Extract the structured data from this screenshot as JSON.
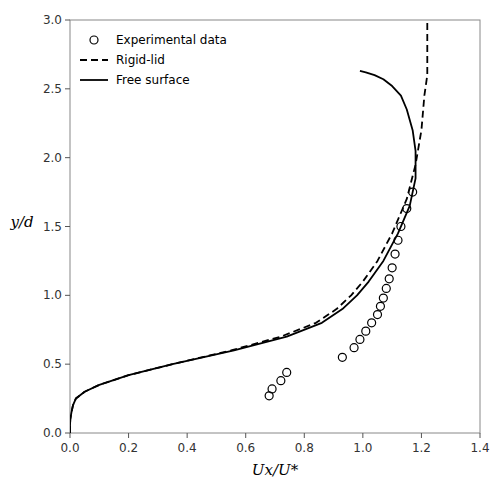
{
  "chart_data": {
    "type": "line",
    "xlabel": "Ux/U*",
    "ylabel": "y/d",
    "xlim": [
      0,
      1.4
    ],
    "ylim": [
      0,
      3.0
    ],
    "xticks": [
      {
        "value": 0,
        "label": "0.0"
      },
      0.2,
      0.4,
      0.6,
      0.8,
      {
        "value": 1.0,
        "label": "1.0"
      },
      1.2,
      1.4
    ],
    "yticks": [
      {
        "value": 0,
        "label": "0.0"
      },
      0.5,
      {
        "value": 1.0,
        "label": "1.0"
      },
      1.5,
      {
        "value": 2.0,
        "label": "2.0"
      },
      2.5,
      {
        "value": 3.0,
        "label": "3.0"
      }
    ],
    "grid": false,
    "legend": "upper left",
    "series": [
      {
        "name": "Experimental data",
        "type": "scatter",
        "color": "#000000",
        "marker": "circle",
        "x": [
          0.68,
          0.69,
          0.72,
          0.74,
          0.93,
          0.97,
          0.99,
          1.01,
          1.03,
          1.05,
          1.06,
          1.07,
          1.08,
          1.09,
          1.1,
          1.11,
          1.12,
          1.13,
          1.15,
          1.17
        ],
        "values": [
          0.27,
          0.32,
          0.38,
          0.44,
          0.55,
          0.62,
          0.68,
          0.74,
          0.8,
          0.86,
          0.92,
          0.98,
          1.05,
          1.12,
          1.2,
          1.3,
          1.4,
          1.5,
          1.63,
          1.75
        ]
      },
      {
        "name": "Rigid-lid",
        "type": "line",
        "color": "#000000",
        "line_style": "dashed",
        "x": [
          0.0,
          0.0,
          0.001,
          0.005,
          0.01,
          0.02,
          0.05,
          0.1,
          0.2,
          0.35,
          0.55,
          0.72,
          0.84,
          0.91,
          0.96,
          1.0,
          1.05,
          1.1,
          1.15,
          1.18,
          1.2,
          1.21,
          1.22,
          1.22,
          1.22,
          1.22
        ],
        "values": [
          0.0,
          0.05,
          0.1,
          0.15,
          0.2,
          0.25,
          0.3,
          0.35,
          0.42,
          0.5,
          0.6,
          0.7,
          0.8,
          0.9,
          1.0,
          1.1,
          1.25,
          1.45,
          1.7,
          1.95,
          2.2,
          2.45,
          2.6,
          2.75,
          2.9,
          3.0
        ]
      },
      {
        "name": "Free surface",
        "type": "line",
        "color": "#000000",
        "line_style": "solid",
        "x": [
          0.0,
          0.0,
          0.001,
          0.005,
          0.01,
          0.02,
          0.05,
          0.1,
          0.2,
          0.35,
          0.56,
          0.74,
          0.86,
          0.93,
          0.98,
          1.02,
          1.07,
          1.12,
          1.16,
          1.18,
          1.18,
          1.17,
          1.15,
          1.13,
          1.1,
          1.07,
          1.04,
          1.01,
          0.99
        ],
        "values": [
          0.0,
          0.05,
          0.1,
          0.15,
          0.2,
          0.25,
          0.3,
          0.35,
          0.42,
          0.5,
          0.6,
          0.7,
          0.8,
          0.9,
          1.0,
          1.1,
          1.25,
          1.45,
          1.65,
          1.85,
          2.05,
          2.2,
          2.35,
          2.45,
          2.52,
          2.57,
          2.6,
          2.62,
          2.63
        ]
      }
    ]
  }
}
